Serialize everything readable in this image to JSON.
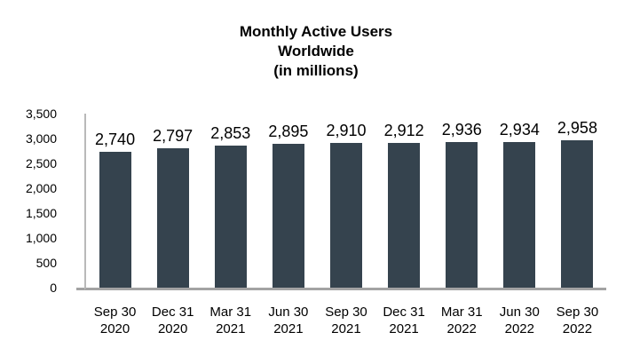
{
  "title": {
    "line1": "Monthly Active Users",
    "line2": "Worldwide",
    "line3": "(in millions)"
  },
  "chart_data": {
    "type": "bar",
    "title": "Monthly Active Users Worldwide (in millions)",
    "title_lines": [
      "Monthly Active Users",
      "Worldwide",
      "(in millions)"
    ],
    "categories": [
      "Sep 30 2020",
      "Dec 31 2020",
      "Mar 31 2021",
      "Jun 30 2021",
      "Sep 30 2021",
      "Dec 31 2021",
      "Mar 31 2022",
      "Jun 30 2022",
      "Sep 30 2022"
    ],
    "values": [
      2740,
      2797,
      2853,
      2895,
      2910,
      2912,
      2936,
      2934,
      2958
    ],
    "data_labels": [
      "2,740",
      "2,797",
      "2,853",
      "2,895",
      "2,910",
      "2,912",
      "2,936",
      "2,934",
      "2,958"
    ],
    "xlabel": "",
    "ylabel": "",
    "ylim": [
      0,
      3500
    ],
    "yticks": [
      0,
      500,
      1000,
      1500,
      2000,
      2500,
      3000,
      3500
    ],
    "ytick_labels": [
      "0",
      "500",
      "1,000",
      "1,500",
      "2,000",
      "2,500",
      "3,000",
      "3,500"
    ],
    "grid": false,
    "legend": "none",
    "bar_color": "#35434e",
    "y_axis_line_color": "#b9b9b9",
    "x_axis_line_color": "#a3a3a3"
  }
}
